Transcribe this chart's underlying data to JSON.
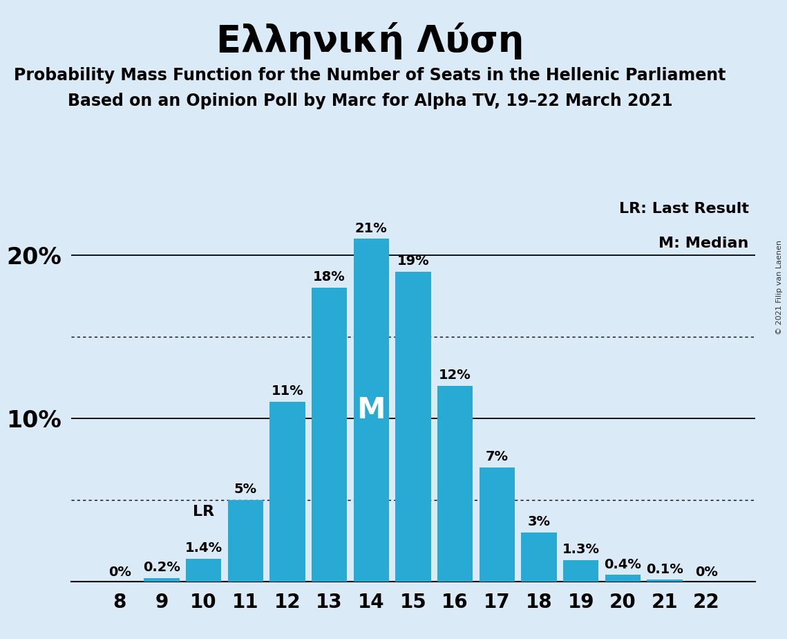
{
  "title": "Ελληνική Λύση",
  "subtitle1": "Probability Mass Function for the Number of Seats in the Hellenic Parliament",
  "subtitle2": "Based on an Opinion Poll by Marc for Alpha TV, 19–22 March 2021",
  "copyright": "© 2021 Filip van Laenen",
  "seats": [
    8,
    9,
    10,
    11,
    12,
    13,
    14,
    15,
    16,
    17,
    18,
    19,
    20,
    21,
    22
  ],
  "probabilities": [
    0.0,
    0.2,
    1.4,
    5.0,
    11.0,
    18.0,
    21.0,
    19.0,
    12.0,
    7.0,
    3.0,
    1.3,
    0.4,
    0.1,
    0.0
  ],
  "labels": [
    "0%",
    "0.2%",
    "1.4%",
    "5%",
    "11%",
    "18%",
    "21%",
    "19%",
    "12%",
    "7%",
    "3%",
    "1.3%",
    "0.4%",
    "0.1%",
    "0%"
  ],
  "bar_color": "#29aad4",
  "background_color": "#daeaf7",
  "median_seat": 14,
  "last_result_seat": 10,
  "legend_lr": "LR: Last Result",
  "legend_m": "M: Median",
  "dotted_line_values": [
    5.0,
    15.0
  ],
  "solid_line_values": [
    10.0,
    20.0
  ],
  "ylim": [
    0,
    23.5
  ],
  "title_fontsize": 38,
  "subtitle_fontsize": 17,
  "bar_label_fontsize": 14,
  "ytick_fontsize": 24,
  "xtick_fontsize": 20,
  "legend_fontsize": 16,
  "m_fontsize": 30,
  "lr_fontsize": 16
}
